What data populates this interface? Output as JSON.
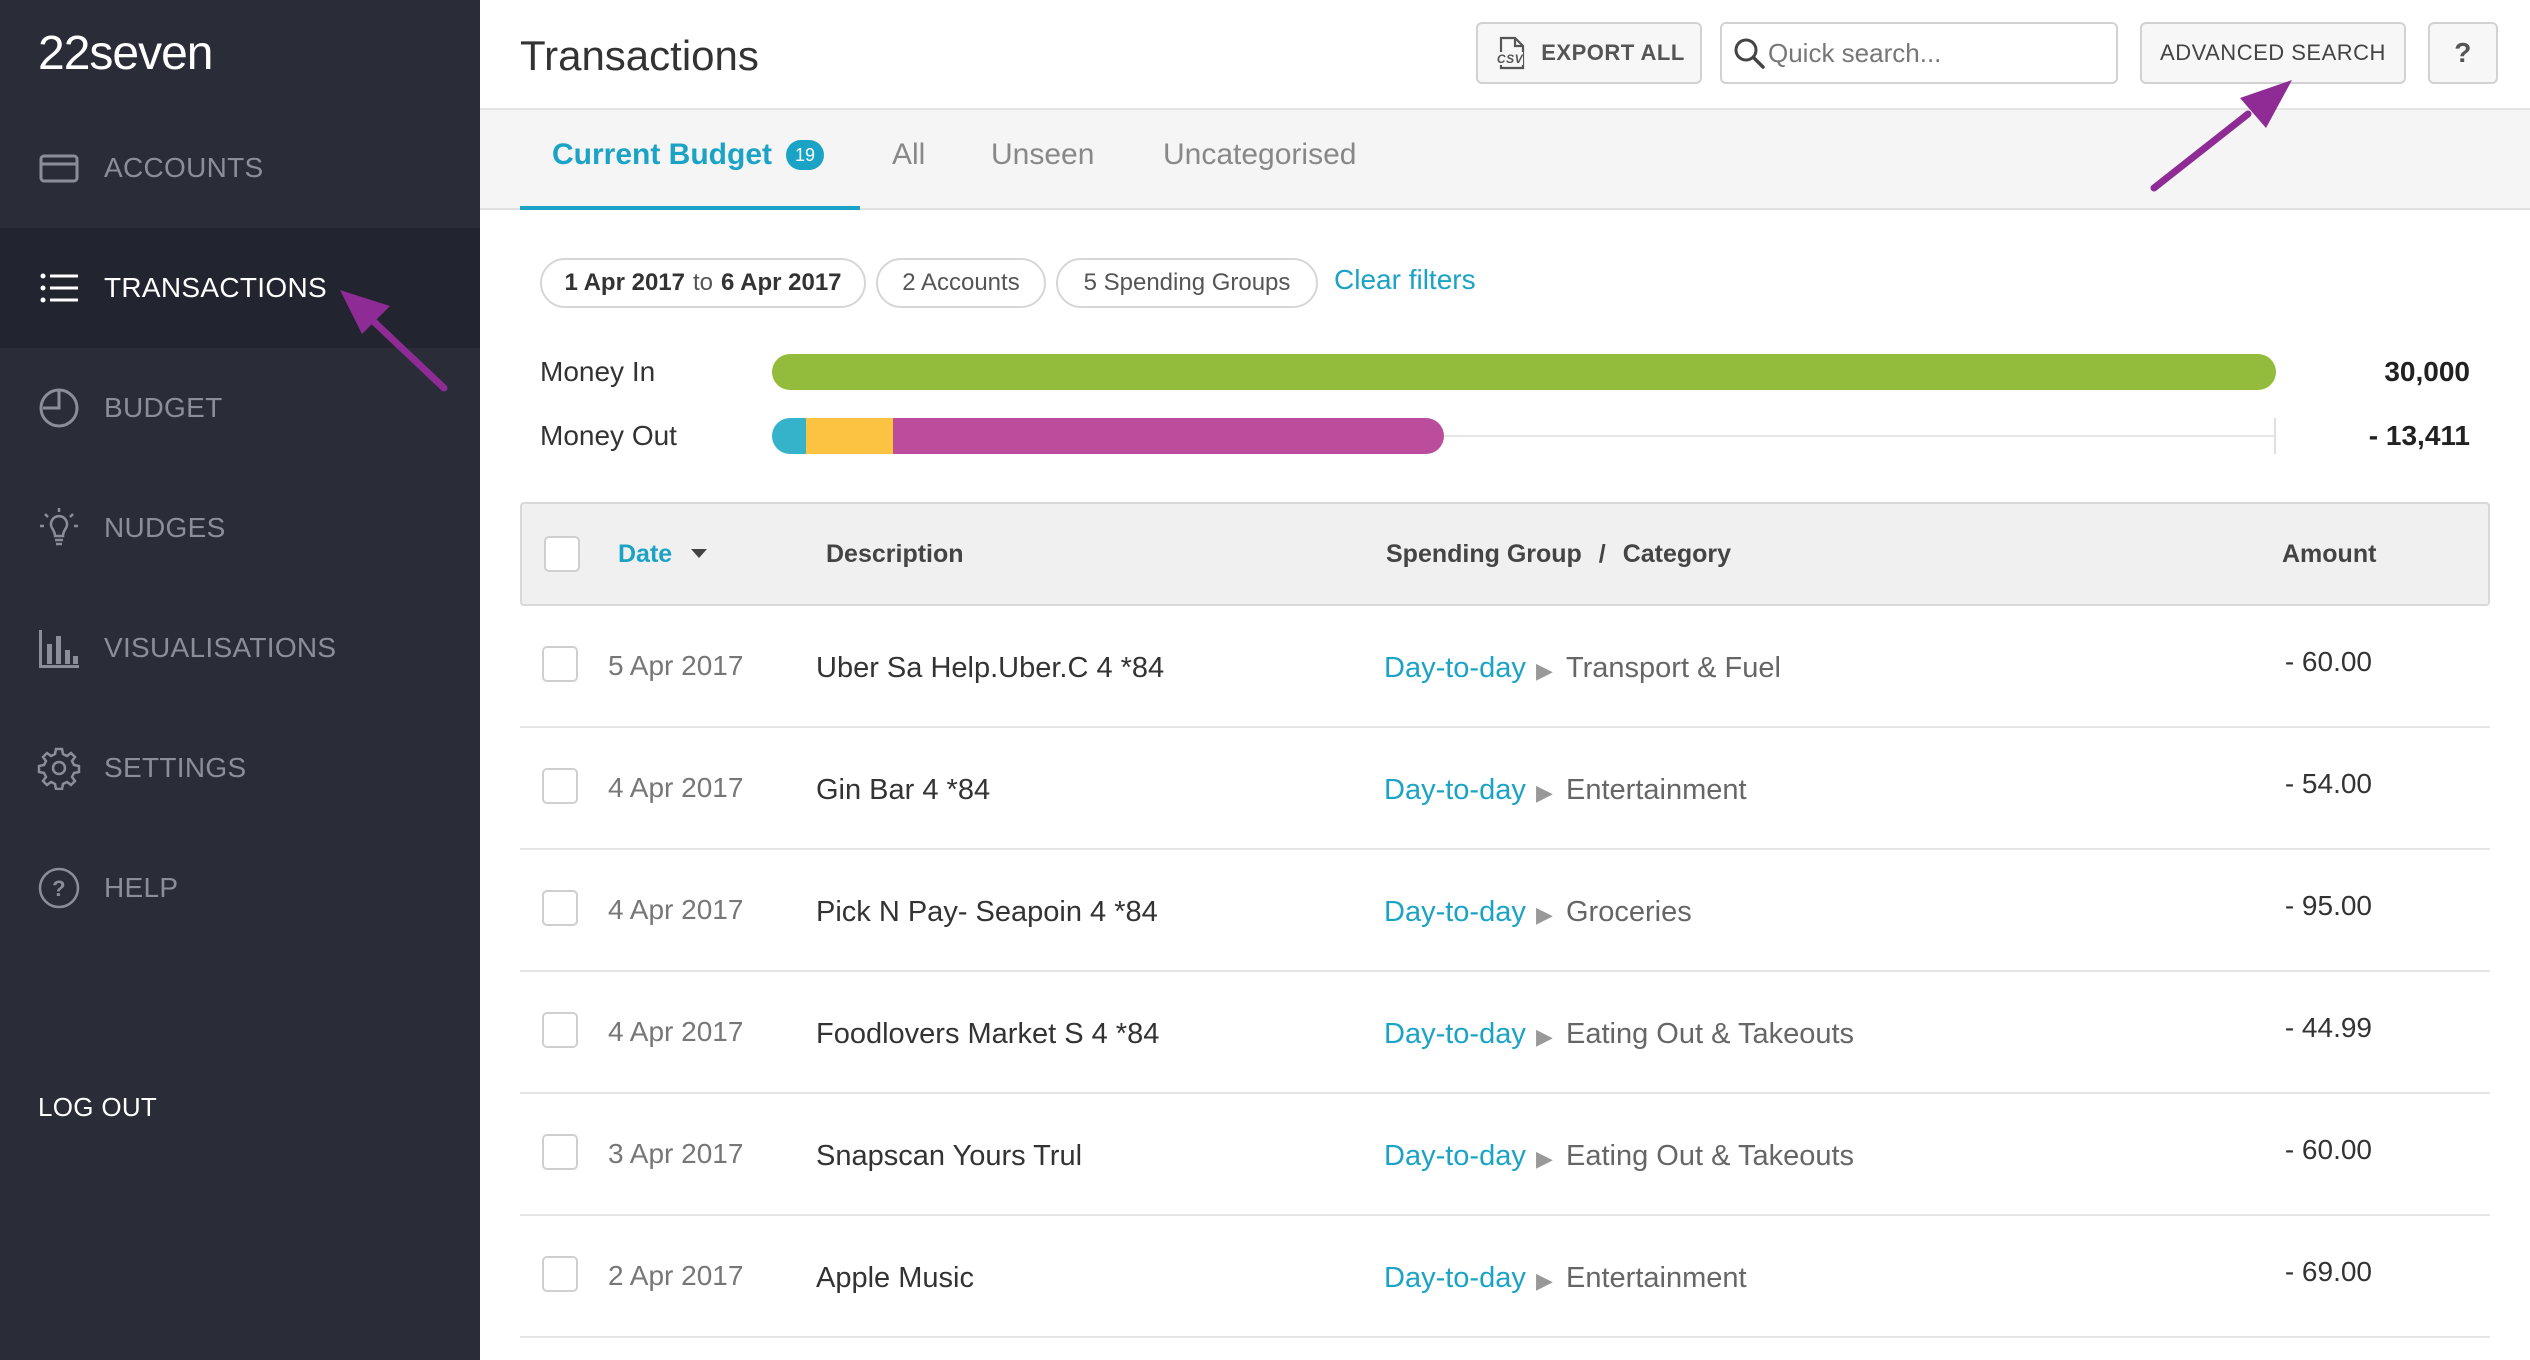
{
  "app": {
    "logo": "22seven"
  },
  "sidebar": {
    "items": [
      {
        "label": "ACCOUNTS",
        "icon": "card-icon",
        "active": false
      },
      {
        "label": "TRANSACTIONS",
        "icon": "list-icon",
        "active": true
      },
      {
        "label": "BUDGET",
        "icon": "pie-icon",
        "active": false
      },
      {
        "label": "NUDGES",
        "icon": "lightbulb-icon",
        "active": false
      },
      {
        "label": "VISUALISATIONS",
        "icon": "bar-chart-icon",
        "active": false
      },
      {
        "label": "SETTINGS",
        "icon": "gear-icon",
        "active": false
      },
      {
        "label": "HELP",
        "icon": "question-icon",
        "active": false
      }
    ],
    "logout_label": "LOG OUT"
  },
  "header": {
    "title": "Transactions",
    "export_label": "EXPORT ALL",
    "search_placeholder": "Quick search...",
    "advanced_label": "ADVANCED SEARCH",
    "help_label": "?"
  },
  "tabs": [
    {
      "label": "Current Budget",
      "badge": "19",
      "active": true
    },
    {
      "label": "All",
      "active": false
    },
    {
      "label": "Unseen",
      "active": false
    },
    {
      "label": "Uncategorised",
      "active": false
    }
  ],
  "filters": {
    "date_from": "1 Apr 2017",
    "date_sep": "to",
    "date_to": "6 Apr 2017",
    "accounts": "2 Accounts",
    "groups": "5 Spending Groups",
    "clear_label": "Clear filters"
  },
  "money": {
    "in_label": "Money In",
    "in_value": "30,000",
    "out_label": "Money Out",
    "out_value": "- 13,411",
    "out_segments": [
      {
        "fraction": 0.05,
        "color": "#35b3ca"
      },
      {
        "fraction": 0.13,
        "color": "#fcc342"
      },
      {
        "fraction": 0.82,
        "color": "#bc4c9c"
      }
    ],
    "colors": {
      "in": "#94bc3c"
    }
  },
  "table": {
    "headers": {
      "date": "Date",
      "description": "Description",
      "group": "Spending Group",
      "group_sep": "/",
      "category": "Category",
      "amount": "Amount"
    },
    "rows": [
      {
        "date": "5 Apr 2017",
        "description": "Uber Sa Help.Uber.C 4 *84",
        "group": "Day-to-day",
        "category": "Transport & Fuel",
        "amount": "- 60.00"
      },
      {
        "date": "4 Apr 2017",
        "description": "Gin Bar 4 *84",
        "group": "Day-to-day",
        "category": "Entertainment",
        "amount": "- 54.00"
      },
      {
        "date": "4 Apr 2017",
        "description": "Pick N Pay- Seapoin 4 *84",
        "group": "Day-to-day",
        "category": "Groceries",
        "amount": "- 95.00"
      },
      {
        "date": "4 Apr 2017",
        "description": "Foodlovers Market S 4 *84",
        "group": "Day-to-day",
        "category": "Eating Out & Takeouts",
        "amount": "- 44.99"
      },
      {
        "date": "3 Apr 2017",
        "description": "Snapscan Yours Trul",
        "group": "Day-to-day",
        "category": "Eating Out & Takeouts",
        "amount": "- 60.00"
      },
      {
        "date": "2 Apr 2017",
        "description": "Apple Music",
        "group": "Day-to-day",
        "category": "Entertainment",
        "amount": "- 69.00"
      }
    ]
  },
  "colors": {
    "accent": "#1ba3c6",
    "sidebar_bg": "#2a2d38",
    "annotation": "#8e2b95"
  }
}
